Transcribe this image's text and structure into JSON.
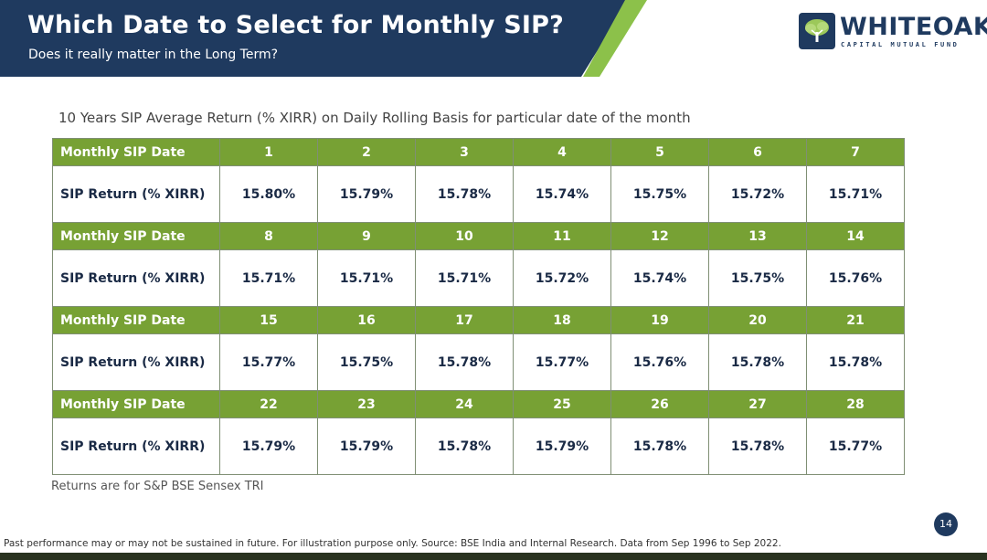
{
  "header": {
    "title": "Which Date to Select for Monthly SIP?",
    "subtitle": "Does it really matter in the Long Term?"
  },
  "logo": {
    "wordmark": "WHITEOAK",
    "tagline": "CAPITAL MUTUAL FUND",
    "icon": "oak-tree-icon"
  },
  "table": {
    "caption": "10 Years SIP Average Return (% XIRR) on Daily Rolling Basis for particular date of the month",
    "date_label": "Monthly SIP Date",
    "return_label": "SIP Return (% XIRR)",
    "blocks": [
      {
        "dates": [
          "1",
          "2",
          "3",
          "4",
          "5",
          "6",
          "7"
        ],
        "returns": [
          "15.80%",
          "15.79%",
          "15.78%",
          "15.74%",
          "15.75%",
          "15.72%",
          "15.71%"
        ]
      },
      {
        "dates": [
          "8",
          "9",
          "10",
          "11",
          "12",
          "13",
          "14"
        ],
        "returns": [
          "15.71%",
          "15.71%",
          "15.71%",
          "15.72%",
          "15.74%",
          "15.75%",
          "15.76%"
        ]
      },
      {
        "dates": [
          "15",
          "16",
          "17",
          "18",
          "19",
          "20",
          "21"
        ],
        "returns": [
          "15.77%",
          "15.75%",
          "15.78%",
          "15.77%",
          "15.76%",
          "15.78%",
          "15.78%"
        ]
      },
      {
        "dates": [
          "22",
          "23",
          "24",
          "25",
          "26",
          "27",
          "28"
        ],
        "returns": [
          "15.79%",
          "15.79%",
          "15.78%",
          "15.79%",
          "15.78%",
          "15.78%",
          "15.77%"
        ]
      }
    ]
  },
  "note": "Returns are for S&P BSE Sensex TRI",
  "page_number": "14",
  "disclaimer": "Past performance may or may not be sustained in future. For illustration purpose only. Source: BSE India and Internal Research. Data from Sep 1996 to Sep 2022.",
  "colors": {
    "banner_navy": "#1f3a5f",
    "accent_green": "#77a134"
  }
}
